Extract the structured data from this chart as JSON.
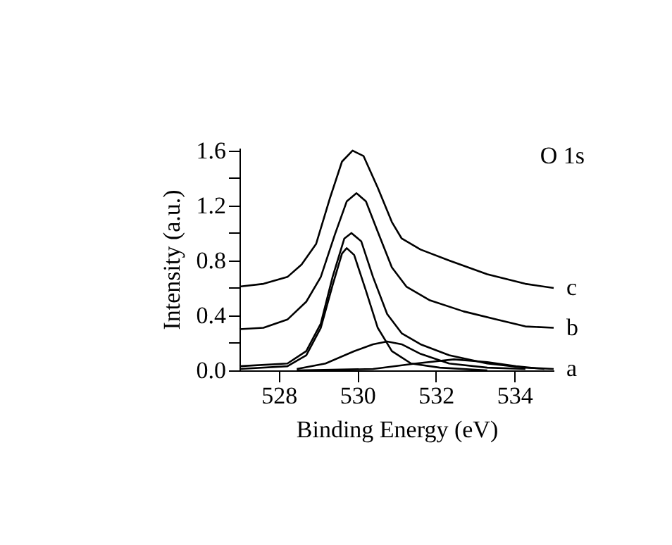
{
  "chart_data": {
    "type": "line",
    "xlabel": "Binding Energy (eV)",
    "ylabel": "Intensity (a.u.)",
    "annotations": [
      "O 1s"
    ],
    "xlim": [
      527,
      535
    ],
    "xticks": [
      528,
      530,
      532,
      534
    ],
    "ylim": [
      0,
      1.62
    ],
    "yticks": [
      {
        "value": 0,
        "label": "0.0"
      },
      {
        "value": 0.2,
        "label": null
      },
      0.4,
      {
        "value": 0.6,
        "label": null
      },
      0.8,
      {
        "value": 1.0,
        "label": null
      },
      1.2,
      {
        "value": 1.4,
        "label": null
      },
      1.6
    ],
    "grid": false,
    "marker": "none",
    "line_style": "solid",
    "series": [
      {
        "name": "c",
        "color": "#000000",
        "x": [
          527.0,
          527.61,
          528.22,
          528.58,
          528.95,
          529.31,
          529.61,
          529.88,
          530.16,
          530.52,
          530.88,
          531.13,
          531.61,
          532.34,
          533.31,
          534.28,
          535.0
        ],
        "values": [
          0.61,
          0.63,
          0.68,
          0.77,
          0.92,
          1.26,
          1.52,
          1.6,
          1.56,
          1.33,
          1.08,
          0.96,
          0.88,
          0.8,
          0.7,
          0.63,
          0.6
        ]
      },
      {
        "name": "b",
        "color": "#000000",
        "x": [
          527.0,
          527.61,
          528.22,
          528.7,
          529.07,
          529.43,
          529.73,
          529.98,
          530.22,
          530.52,
          530.88,
          531.25,
          531.85,
          532.7,
          533.55,
          534.28,
          535.0
        ],
        "values": [
          0.3,
          0.31,
          0.37,
          0.5,
          0.68,
          0.99,
          1.23,
          1.29,
          1.23,
          1.01,
          0.75,
          0.61,
          0.51,
          0.43,
          0.37,
          0.32,
          0.31
        ]
      },
      {
        "name": "a",
        "color": "#000000",
        "x": [
          527.0,
          528.22,
          528.7,
          529.07,
          529.37,
          529.67,
          529.85,
          530.1,
          530.4,
          530.76,
          531.13,
          531.61,
          532.34,
          533.31,
          534.28,
          535.0
        ],
        "values": [
          0.03,
          0.05,
          0.14,
          0.34,
          0.68,
          0.96,
          1.0,
          0.94,
          0.68,
          0.41,
          0.27,
          0.19,
          0.11,
          0.05,
          0.02,
          0.01
        ]
      },
      {
        "color": "#000000",
        "x": [
          527.0,
          528.22,
          528.7,
          529.07,
          529.37,
          529.61,
          529.73,
          529.92,
          530.22,
          530.52,
          530.88,
          531.37,
          532.1,
          533.31
        ],
        "values": [
          0.01,
          0.03,
          0.11,
          0.31,
          0.62,
          0.85,
          0.89,
          0.84,
          0.58,
          0.31,
          0.14,
          0.05,
          0.02,
          0.0
        ]
      },
      {
        "color": "#000000",
        "x": [
          528.46,
          529.19,
          529.92,
          530.4,
          530.76,
          531.13,
          531.61,
          532.34,
          533.31,
          534.28
        ],
        "values": [
          0.01,
          0.05,
          0.14,
          0.19,
          0.21,
          0.19,
          0.12,
          0.05,
          0.02,
          0.01
        ]
      },
      {
        "color": "#000000",
        "x": [
          528.46,
          530.4,
          531.49,
          532.46,
          533.31,
          534.04,
          534.76
        ],
        "values": [
          0.0,
          0.01,
          0.05,
          0.08,
          0.06,
          0.03,
          0.01
        ]
      }
    ]
  }
}
